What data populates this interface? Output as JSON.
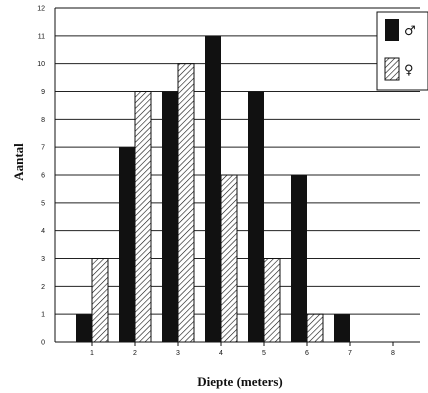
{
  "chart_data": {
    "type": "bar",
    "xlabel": "Diepte (meters)",
    "ylabel": "Aantal",
    "categories": [
      "1",
      "2",
      "3",
      "4",
      "5",
      "6",
      "7",
      "8"
    ],
    "y_ticks": [
      "0",
      "1",
      "2",
      "3",
      "4",
      "5",
      "6",
      "7",
      "8",
      "9",
      "10",
      "11",
      "12"
    ],
    "ylim": [
      0,
      12
    ],
    "grid": true,
    "legend_position": "top-right",
    "series": [
      {
        "name": "♂",
        "pattern": "solid",
        "color": "#111111",
        "values": [
          1,
          7,
          9,
          11,
          9,
          6,
          1,
          0
        ]
      },
      {
        "name": "♀",
        "pattern": "hatched",
        "color": "#111111",
        "values": [
          3,
          9,
          10,
          6,
          3,
          1,
          0,
          0
        ]
      }
    ]
  }
}
